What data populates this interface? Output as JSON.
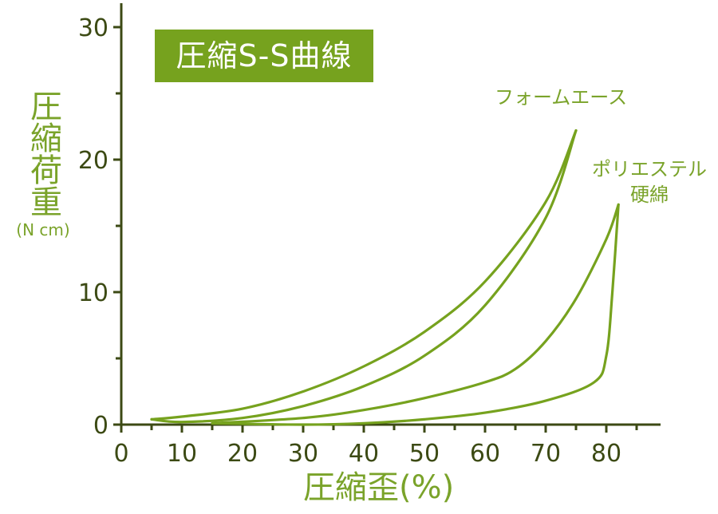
{
  "chart_data": {
    "type": "line",
    "title": "圧縮S-S曲線",
    "ylabel": "圧縮荷重",
    "yunit": "(N cm)",
    "xlabel": "圧縮歪(%)",
    "xlim": [
      0,
      90
    ],
    "ylim": [
      0,
      32
    ],
    "xticks": [
      0,
      10,
      20,
      30,
      40,
      50,
      60,
      70,
      80
    ],
    "yticks": [
      0,
      10,
      20,
      30
    ],
    "grid": false,
    "colors": {
      "series": "#76a21e",
      "title_bg": "#76a21e",
      "label": "#7aa32a",
      "axis": "#3c4a14"
    },
    "series": [
      {
        "name": "フォームエース",
        "loading": [
          [
            5,
            0.4
          ],
          [
            10,
            0.6
          ],
          [
            20,
            1.2
          ],
          [
            30,
            2.5
          ],
          [
            40,
            4.4
          ],
          [
            50,
            7.0
          ],
          [
            60,
            10.8
          ],
          [
            70,
            16.8
          ],
          [
            75,
            22.2
          ]
        ],
        "unloading": [
          [
            75,
            22.2
          ],
          [
            70,
            15.6
          ],
          [
            60,
            9.0
          ],
          [
            50,
            5.2
          ],
          [
            40,
            2.9
          ],
          [
            30,
            1.4
          ],
          [
            20,
            0.5
          ],
          [
            10,
            0.2
          ],
          [
            5,
            0.4
          ]
        ]
      },
      {
        "name": "ポリエステル 硬綿",
        "label_lines": [
          "ポリエステル",
          "硬綿"
        ],
        "loading": [
          [
            15,
            0.1
          ],
          [
            30,
            0.5
          ],
          [
            40,
            1.1
          ],
          [
            50,
            2.0
          ],
          [
            60,
            3.2
          ],
          [
            65,
            4.2
          ],
          [
            70,
            6.3
          ],
          [
            75,
            9.5
          ],
          [
            80,
            14.0
          ],
          [
            82,
            16.6
          ]
        ],
        "unloading": [
          [
            82,
            16.6
          ],
          [
            81,
            10.0
          ],
          [
            80,
            5.2
          ],
          [
            78,
            3.2
          ],
          [
            70,
            1.8
          ],
          [
            60,
            0.9
          ],
          [
            50,
            0.4
          ],
          [
            40,
            0.1
          ],
          [
            30,
            0.0
          ],
          [
            15,
            0.1
          ]
        ]
      }
    ]
  }
}
